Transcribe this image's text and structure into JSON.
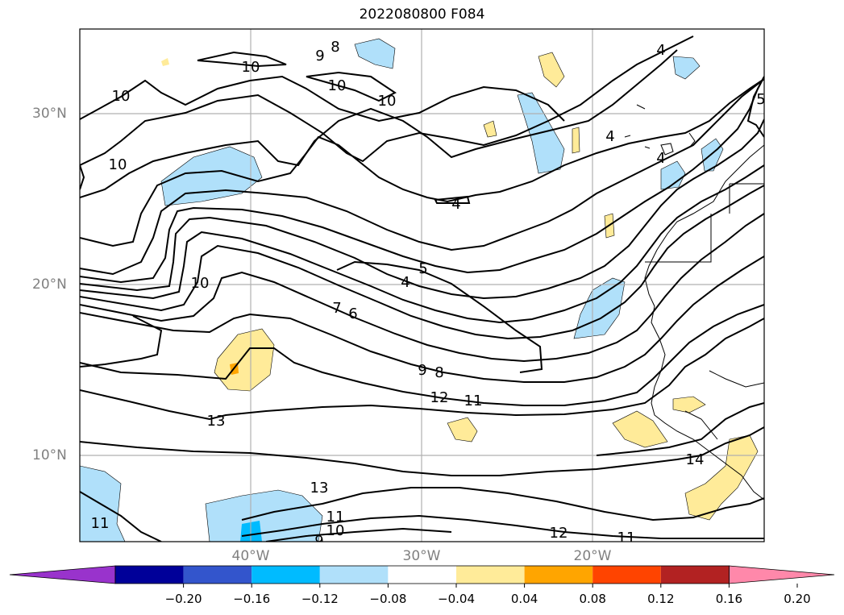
{
  "title": "2022080800 F084",
  "lat_labels": [
    "30°N",
    "20°N",
    "10°N"
  ],
  "lon_labels": [
    "40°W",
    "30°W",
    "20°W"
  ],
  "colorbar": {
    "colors": [
      "#9933cc",
      "#000099",
      "#3355cc",
      "#00bbff",
      "#b0e0fa",
      "#ffffff",
      "#ffeb99",
      "#ffa500",
      "#ff4400",
      "#b22222",
      "#ff88aa"
    ],
    "ticks": [
      "−0.20",
      "−0.16",
      "−0.12",
      "−0.08",
      "−0.04",
      "0.04",
      "0.08",
      "0.12",
      "0.16",
      "0.20"
    ]
  },
  "contour_labels": [
    "10",
    "9",
    "8",
    "10",
    "10",
    "10",
    "10",
    "4",
    "4",
    "4",
    "4",
    "5",
    "5",
    "4",
    "10",
    "7",
    "6",
    "9",
    "8",
    "12",
    "11",
    "13",
    "14",
    "13",
    "11",
    "11",
    "10",
    "9",
    "12",
    "11"
  ],
  "colors": {
    "positive_fill": "#ffeb99",
    "negative_fill": "#b0e0fa",
    "grid": "#b0b0b0",
    "label": "#808080"
  }
}
